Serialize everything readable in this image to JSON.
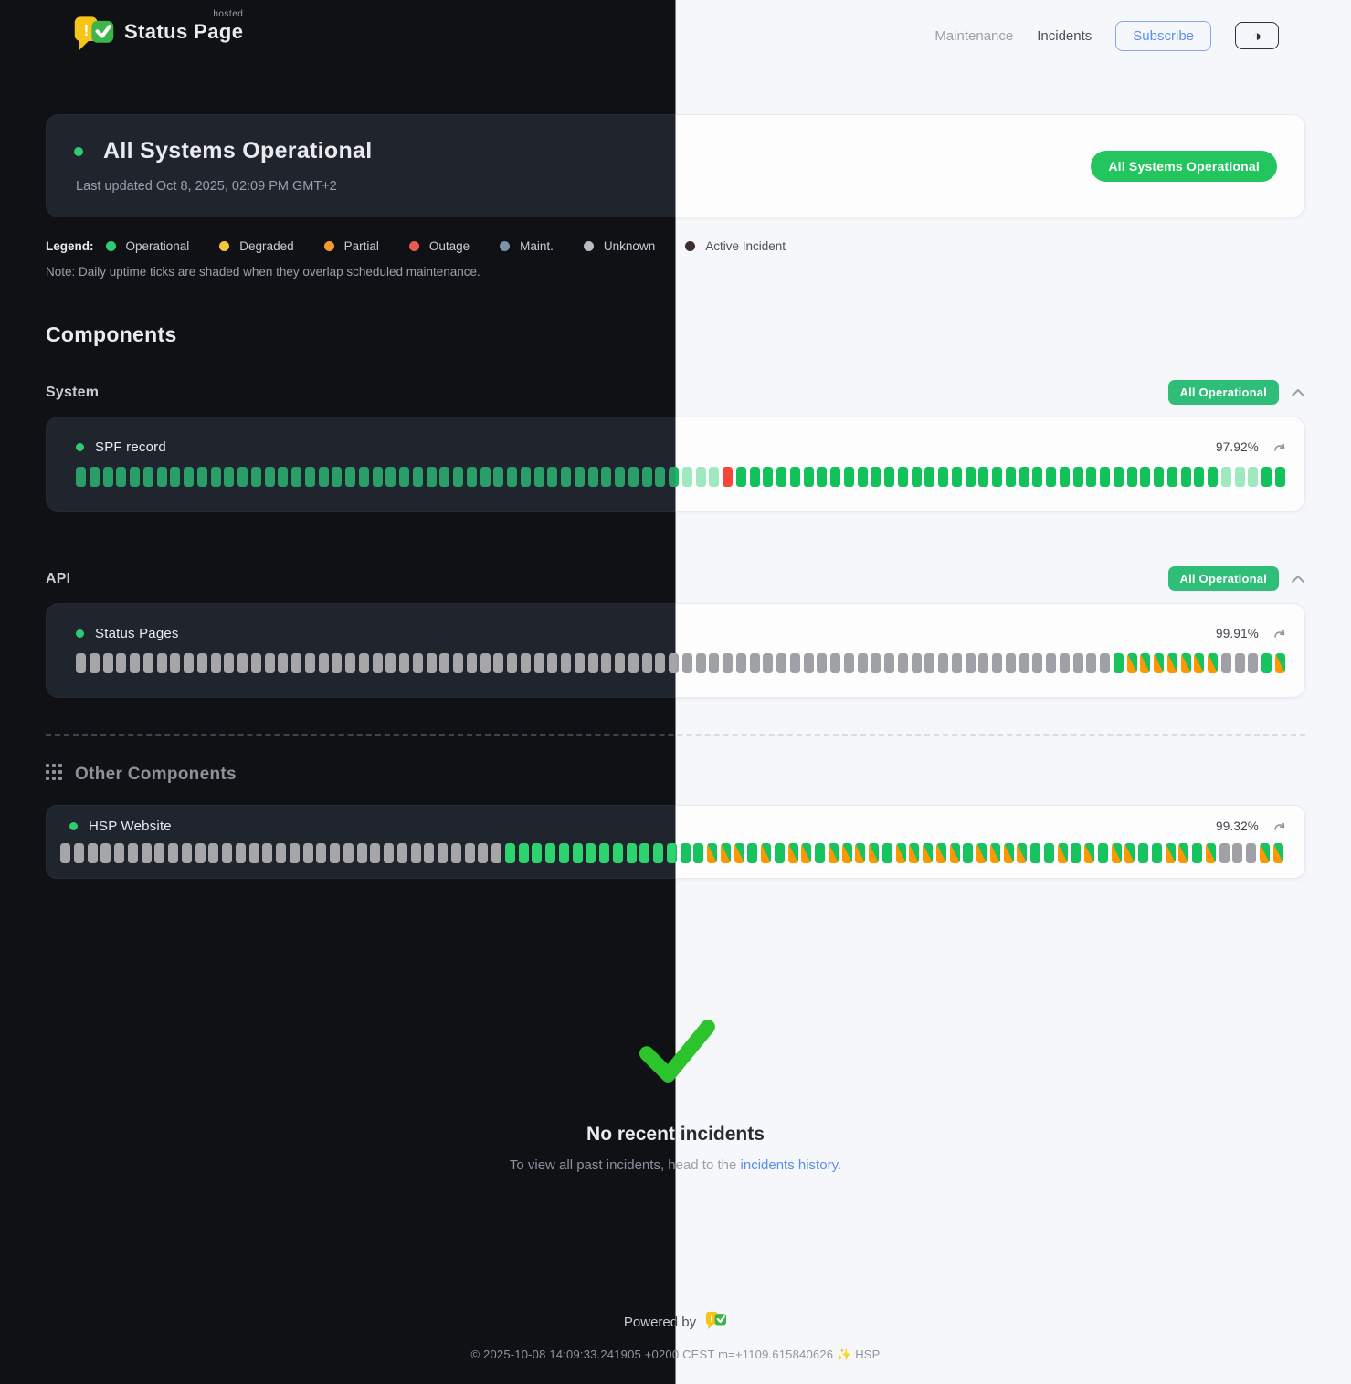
{
  "header": {
    "brand": {
      "name": "Status Page",
      "superscript": "hosted"
    },
    "nav": [
      {
        "label": "Maintenance"
      },
      {
        "label": "Incidents"
      }
    ],
    "subscribe_label": "Subscribe",
    "theme_toggle_glyph": "◑"
  },
  "banner": {
    "title": "All Systems Operational",
    "last_updated": "Last updated Oct 8, 2025, 02:09 PM GMT+2",
    "badge": "All Systems Operational"
  },
  "legend": {
    "label": "Legend:",
    "items": [
      {
        "key": "operational",
        "label": "Operational",
        "color": "#2ecc71"
      },
      {
        "key": "degraded",
        "label": "Degraded",
        "color": "#f4c63d"
      },
      {
        "key": "partial",
        "label": "Partial",
        "color": "#f39b2d"
      },
      {
        "key": "outage",
        "label": "Outage",
        "color": "#ea5a4f"
      },
      {
        "key": "maint",
        "label": "Maint.",
        "color": "#7b93a8"
      },
      {
        "key": "unknown",
        "label": "Unknown",
        "color": "#b9bdc2"
      },
      {
        "key": "active",
        "label": "Active Incident",
        "color": "#3c2d2e"
      }
    ],
    "note": "Note: Daily uptime ticks are shaded when they overlap scheduled maintenance."
  },
  "components": {
    "heading": "Components",
    "groups": [
      {
        "name": "System",
        "badge": "All Operational",
        "items": [
          {
            "name": "SPF record",
            "uptime": "97.92%",
            "ticks": [
              "op",
              "op",
              "op",
              "op",
              "op",
              "op",
              "op",
              "op",
              "op",
              "op",
              "op",
              "op",
              "op",
              "op",
              "op",
              "op",
              "op",
              "op",
              "op",
              "op",
              "op",
              "op",
              "op",
              "op",
              "op",
              "op",
              "op",
              "op",
              "op",
              "op",
              "op",
              "op",
              "op",
              "op",
              "op",
              "op",
              "op",
              "op",
              "op",
              "op",
              "op",
              "op",
              "op",
              "op",
              "op",
              "sh",
              "sh",
              "sh",
              "out",
              "op",
              "op",
              "op",
              "op",
              "op",
              "op",
              "op",
              "op",
              "op",
              "op",
              "op",
              "op",
              "op",
              "op",
              "op",
              "op",
              "op",
              "op",
              "op",
              "op",
              "op",
              "op",
              "op",
              "op",
              "op",
              "op",
              "op",
              "op",
              "op",
              "op",
              "op",
              "op",
              "op",
              "op",
              "op",
              "op",
              "sh",
              "sh",
              "sh",
              "op",
              "op"
            ]
          }
        ]
      },
      {
        "name": "API",
        "badge": "All Operational",
        "items": [
          {
            "name": "Status Pages",
            "uptime": "99.91%",
            "ticks": [
              "unk",
              "unk",
              "unk",
              "unk",
              "unk",
              "unk",
              "unk",
              "unk",
              "unk",
              "unk",
              "unk",
              "unk",
              "unk",
              "unk",
              "unk",
              "unk",
              "unk",
              "unk",
              "unk",
              "unk",
              "unk",
              "unk",
              "unk",
              "unk",
              "unk",
              "unk",
              "unk",
              "unk",
              "unk",
              "unk",
              "unk",
              "unk",
              "unk",
              "unk",
              "unk",
              "unk",
              "unk",
              "unk",
              "unk",
              "unk",
              "unk",
              "unk",
              "unk",
              "unk",
              "unk",
              "unk",
              "unk",
              "unk",
              "unk",
              "unk",
              "unk",
              "unk",
              "unk",
              "unk",
              "unk",
              "unk",
              "unk",
              "unk",
              "unk",
              "unk",
              "unk",
              "unk",
              "unk",
              "unk",
              "unk",
              "unk",
              "unk",
              "unk",
              "unk",
              "unk",
              "unk",
              "unk",
              "unk",
              "unk",
              "unk",
              "unk",
              "unk",
              "op2",
              "mx",
              "mx",
              "mx",
              "mx",
              "mx",
              "mx",
              "mx",
              "unk",
              "unk",
              "unk",
              "op2",
              "mx"
            ]
          }
        ]
      }
    ],
    "other": {
      "heading": "Other Components",
      "items": [
        {
          "name": "HSP Website",
          "uptime": "99.32%",
          "ticks": [
            "unk",
            "unk",
            "unk",
            "unk",
            "unk",
            "unk",
            "unk",
            "unk",
            "unk",
            "unk",
            "unk",
            "unk",
            "unk",
            "unk",
            "unk",
            "unk",
            "unk",
            "unk",
            "unk",
            "unk",
            "unk",
            "unk",
            "unk",
            "unk",
            "unk",
            "unk",
            "unk",
            "unk",
            "unk",
            "unk",
            "unk",
            "unk",
            "unk",
            "op2",
            "op2",
            "op2",
            "op2",
            "op2",
            "op2",
            "op2",
            "op2",
            "op2",
            "op2",
            "op2",
            "op2",
            "op2",
            "op2",
            "op2",
            "mx",
            "mx",
            "mx",
            "op2",
            "mx",
            "op2",
            "mx",
            "mx",
            "op2",
            "mx",
            "mx",
            "mx",
            "mx",
            "op2",
            "mx",
            "mx",
            "mx",
            "mx",
            "mx",
            "op2",
            "mx",
            "mx",
            "mx",
            "mx",
            "op2",
            "op2",
            "mx",
            "op2",
            "mx",
            "op2",
            "mx",
            "mx",
            "op2",
            "op2",
            "mx",
            "mx",
            "op2",
            "mx",
            "unk",
            "unk",
            "unk",
            "mx",
            "mx"
          ]
        }
      ]
    }
  },
  "incidents": {
    "title": "No recent incidents",
    "subtitle_prefix": "To view all past incidents, head to the ",
    "link_text": "incidents history",
    "subtitle_suffix": "."
  },
  "footer": {
    "powered_by": "Powered by",
    "copyright": "© 2025-10-08 14:09:33.241905 +0200 CEST m=+1109.615840626 ✨ HSP"
  },
  "colors": {
    "accent_green": "#22c55e",
    "badge_green": "#2fbe77",
    "tick_operational_dark": "#2a9e68",
    "tick_operational_light": "#13c15b",
    "tick_shaded": "#9fe8c0",
    "tick_outage": "#f4473a",
    "tick_unknown": "#a6a6a8",
    "tick_maint_orange": "#ff9800",
    "link_blue": "#5b8def",
    "dark_bg": "#101114",
    "dark_card": "#1f242d",
    "light_bg": "#f6f7fa",
    "light_card": "#fdfdfe"
  }
}
